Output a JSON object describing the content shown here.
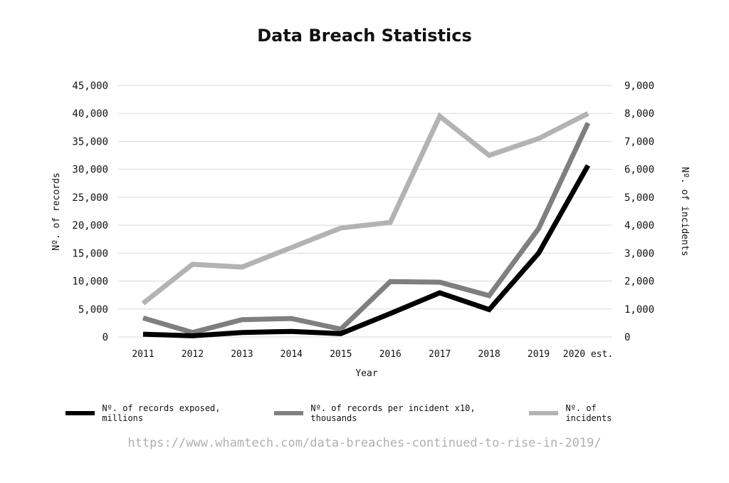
{
  "chart_data": {
    "type": "line",
    "title": "Data Breach Statistics",
    "xlabel": "Year",
    "ylabel_left": "Nº. of records",
    "ylabel_right": "Nº. of incidents",
    "categories": [
      "2011",
      "2012",
      "2013",
      "2014",
      "2015",
      "2016",
      "2017",
      "2018",
      "2019",
      "2020 est."
    ],
    "ylim_left": [
      0,
      45000
    ],
    "ylim_right": [
      0,
      9000
    ],
    "yticks_left": [
      "0",
      "5,000",
      "10,000",
      "15,000",
      "20,000",
      "25,000",
      "30,000",
      "35,000",
      "40,000",
      "45,000"
    ],
    "yticks_right": [
      "0",
      "1,000",
      "2,000",
      "3,000",
      "4,000",
      "5,000",
      "6,000",
      "7,000",
      "8,000",
      "9,000"
    ],
    "grid": true,
    "legend_position": "bottom",
    "series": [
      {
        "name": "Nº. of records exposed, millions",
        "axis": "left",
        "color": "#000000",
        "values": [
          500,
          200,
          800,
          1000,
          600,
          4200,
          7900,
          4900,
          15000,
          30700
        ]
      },
      {
        "name": "Nº. of records per incident x10, thousands",
        "axis": "left",
        "color": "#7f7f7f",
        "values": [
          3400,
          800,
          3100,
          3300,
          1400,
          9900,
          9800,
          7400,
          19400,
          38300
        ]
      },
      {
        "name": "Nº. of incidents",
        "axis": "right",
        "color": "#b3b3b3",
        "values": [
          1200,
          2600,
          2500,
          3200,
          3900,
          4100,
          7900,
          6500,
          7100,
          8000
        ]
      }
    ]
  },
  "source_url": "https://www.whamtech.com/data-breaches-continued-to-rise-in-2019/"
}
